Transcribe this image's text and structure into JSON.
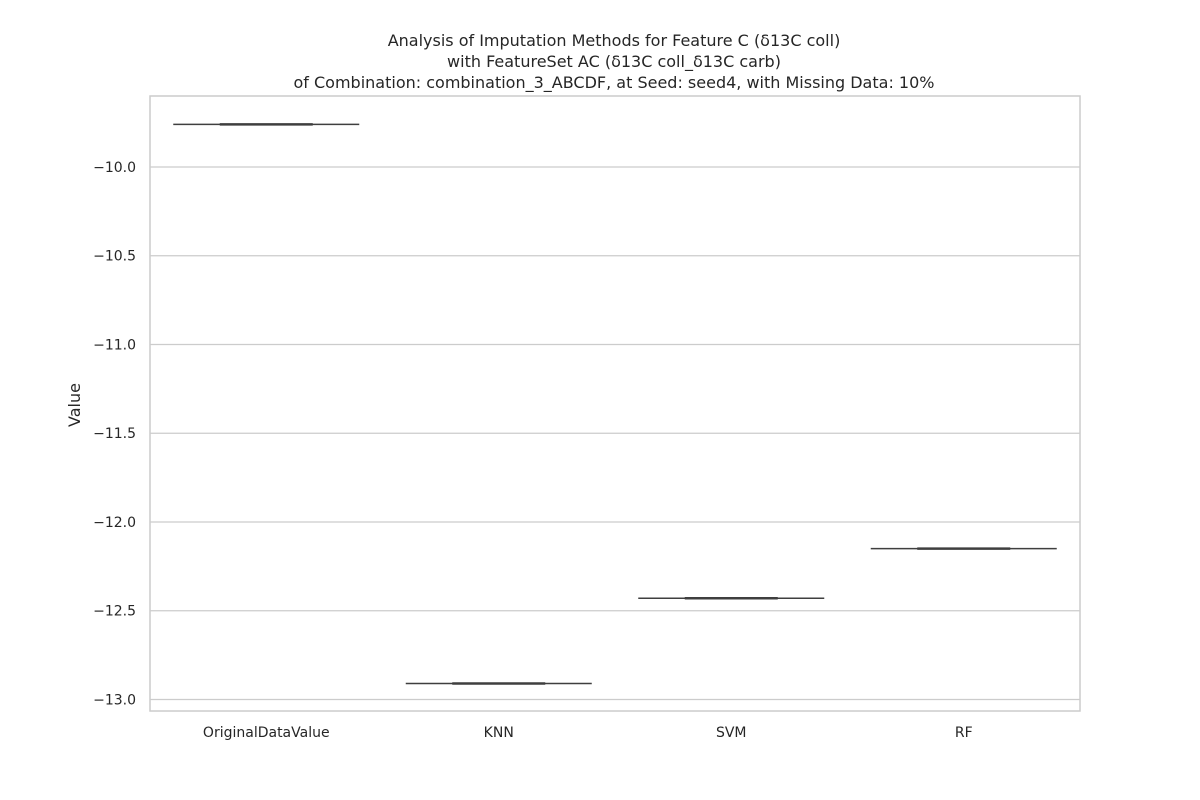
{
  "chart_data": {
    "type": "box",
    "title_lines": [
      "Analysis of Imputation Methods for Feature C (δ13C coll)",
      "with FeatureSet AC (δ13C coll_δ13C carb)",
      "of Combination: combination_3_ABCDF, at Seed: seed4, with Missing Data: 10%"
    ],
    "xlabel": "",
    "ylabel": "Value",
    "categories": [
      "OriginalDataValue",
      "KNN",
      "SVM",
      "RF"
    ],
    "values": [
      -9.76,
      -12.91,
      -12.43,
      -12.15
    ],
    "ylim": [
      -13.065,
      -9.6
    ],
    "yticks": [
      -10.0,
      -10.5,
      -11.0,
      -11.5,
      -12.0,
      -12.5,
      -13.0
    ],
    "ytick_labels": [
      "−10.0",
      "−10.5",
      "−11.0",
      "−11.5",
      "−12.0",
      "−12.5",
      "−13.0"
    ],
    "grid": true,
    "colors": {
      "grid": "#cccccc",
      "frame": "#cccccc",
      "box_line": "#3f3f3f",
      "text": "#262626"
    }
  }
}
